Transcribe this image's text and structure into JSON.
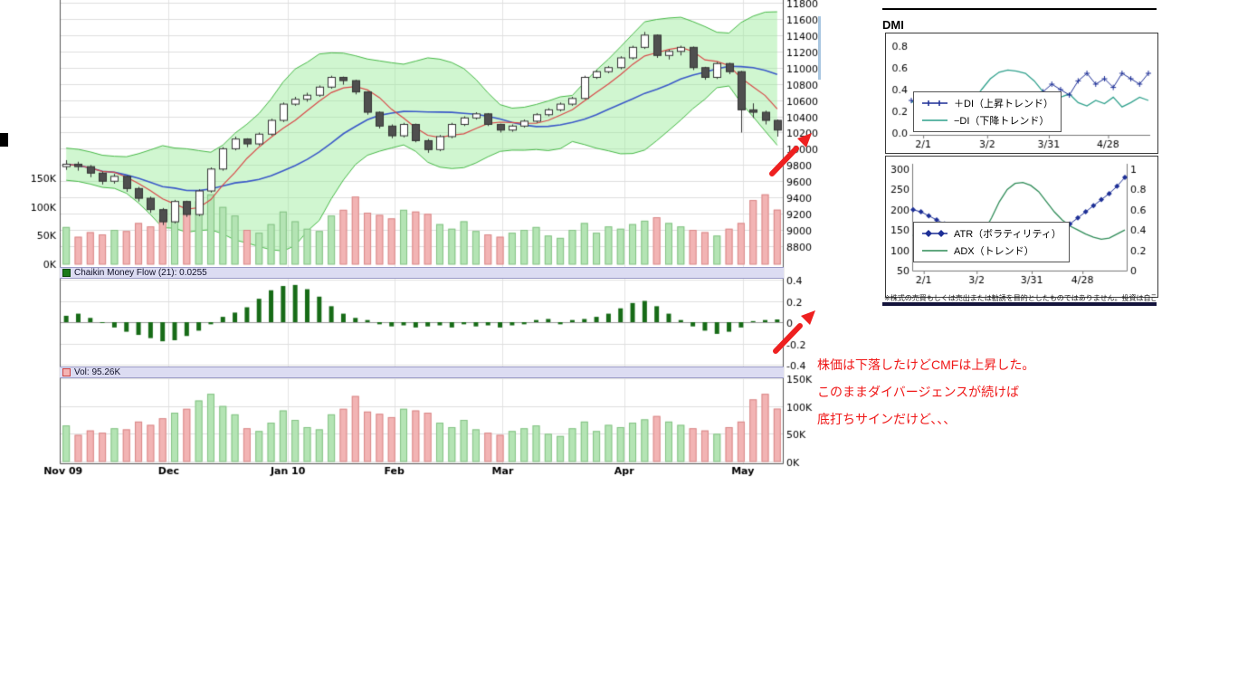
{
  "panels": {
    "cmf_header": "Chaikin Money Flow (21): 0.0255",
    "vol_header": "Vol: 95.26K"
  },
  "dmi": {
    "title": "DMI",
    "caption": "※株式の売買もしくは売出または勧誘を目的としたものではありません。投資は自己判断で。"
  },
  "annotation": {
    "lines": [
      "株価は下落したけどCMFは上昇した。",
      "このままダイバージェンスが続けば",
      "底打ちサインだけど、、、"
    ]
  },
  "colors": {
    "accent_red": "#ee2020",
    "band_fill": "rgba(150,235,150,0.45)",
    "band_edge": "#46b846",
    "bar_green": "#b4e4b4",
    "bar_green_edge": "#84c284",
    "bar_pink": "#f2b4b4",
    "bar_pink_edge": "#d98888",
    "cmf_green": "#176b17",
    "ma_red": "#d84848",
    "ma_blue": "#3a58c8",
    "di_plus_blue": "#1d2f96",
    "di_minus_teal": "#2fa08c",
    "atr_navy": "#1d2f96",
    "adx_green": "#2e8b57",
    "grid": "#dedede",
    "vgrid": "#e3e3e3",
    "candle_up_fill": "#ffffff",
    "candle_down_fill": "#4f4f4f",
    "candle_edge": "#333333",
    "header_bg": "#dcdcf2"
  },
  "chart_data": [
    {
      "type": "candlestick",
      "name": "price",
      "ylim": [
        8800,
        11800
      ],
      "y_ticks": [
        11800,
        11600,
        11400,
        11200,
        11000,
        10800,
        10600,
        10400,
        10200,
        10000,
        9800,
        9600,
        9400,
        9200,
        9000,
        8800
      ],
      "x_labels": [
        {
          "label": "Nov 09",
          "f": 0.004
        },
        {
          "label": "Dec",
          "f": 0.15
        },
        {
          "label": "Jan 10",
          "f": 0.315
        },
        {
          "label": "Feb",
          "f": 0.462
        },
        {
          "label": "Mar",
          "f": 0.612
        },
        {
          "label": "Apr",
          "f": 0.78
        },
        {
          "label": "May",
          "f": 0.944
        }
      ],
      "overlays": {
        "bollinger": {
          "window": 12,
          "stdev_mult": 2.2
        },
        "ma_fast_window": 5,
        "ma_slow_window": 15
      },
      "volume_overlay": {
        "ticks": [
          {
            "label": "150K",
            "v": 150
          },
          {
            "label": "100K",
            "v": 100
          },
          {
            "label": "50K",
            "v": 50
          },
          {
            "label": "0K",
            "v": 0
          }
        ],
        "max": 150
      },
      "candles": [
        [
          9780,
          9860,
          9740,
          9810
        ],
        [
          9810,
          9840,
          9730,
          9780
        ],
        [
          9780,
          9800,
          9650,
          9700
        ],
        [
          9700,
          9720,
          9560,
          9600
        ],
        [
          9600,
          9690,
          9570,
          9660
        ],
        [
          9660,
          9670,
          9470,
          9510
        ],
        [
          9510,
          9530,
          9350,
          9390
        ],
        [
          9390,
          9410,
          9210,
          9250
        ],
        [
          9250,
          9270,
          9060,
          9100
        ],
        [
          9100,
          9370,
          9080,
          9350
        ],
        [
          9350,
          9360,
          9160,
          9190
        ],
        [
          9190,
          9500,
          9170,
          9480
        ],
        [
          9480,
          9770,
          9460,
          9750
        ],
        [
          9750,
          10020,
          9730,
          10000
        ],
        [
          10000,
          10150,
          9980,
          10120
        ],
        [
          10120,
          10130,
          10020,
          10060
        ],
        [
          10060,
          10200,
          10040,
          10180
        ],
        [
          10180,
          10370,
          10160,
          10350
        ],
        [
          10350,
          10570,
          10330,
          10550
        ],
        [
          10550,
          10640,
          10530,
          10610
        ],
        [
          10610,
          10690,
          10580,
          10660
        ],
        [
          10660,
          10780,
          10640,
          10760
        ],
        [
          10760,
          10900,
          10740,
          10880
        ],
        [
          10880,
          10890,
          10790,
          10840
        ],
        [
          10840,
          10850,
          10670,
          10700
        ],
        [
          10700,
          10710,
          10420,
          10450
        ],
        [
          10450,
          10460,
          10250,
          10280
        ],
        [
          10280,
          10300,
          10130,
          10160
        ],
        [
          10160,
          10320,
          10140,
          10300
        ],
        [
          10300,
          10310,
          10080,
          10100
        ],
        [
          10100,
          10120,
          9950,
          9990
        ],
        [
          9990,
          10170,
          9970,
          10150
        ],
        [
          10150,
          10320,
          10130,
          10300
        ],
        [
          10300,
          10400,
          10280,
          10380
        ],
        [
          10380,
          10450,
          10360,
          10430
        ],
        [
          10430,
          10440,
          10280,
          10300
        ],
        [
          10300,
          10310,
          10200,
          10230
        ],
        [
          10230,
          10300,
          10210,
          10280
        ],
        [
          10280,
          10360,
          10260,
          10340
        ],
        [
          10340,
          10440,
          10320,
          10420
        ],
        [
          10420,
          10500,
          10400,
          10480
        ],
        [
          10480,
          10570,
          10460,
          10550
        ],
        [
          10550,
          10640,
          10530,
          10620
        ],
        [
          10620,
          10900,
          10610,
          10880
        ],
        [
          10880,
          10970,
          10860,
          10950
        ],
        [
          10950,
          11020,
          10930,
          11000
        ],
        [
          11000,
          11140,
          10980,
          11120
        ],
        [
          11120,
          11270,
          11100,
          11250
        ],
        [
          11250,
          11440,
          11230,
          11400
        ],
        [
          11400,
          11410,
          11120,
          11150
        ],
        [
          11150,
          11220,
          11100,
          11200
        ],
        [
          11200,
          11270,
          11150,
          11250
        ],
        [
          11250,
          11260,
          10970,
          11000
        ],
        [
          11000,
          11010,
          10850,
          10880
        ],
        [
          10880,
          11070,
          10860,
          11050
        ],
        [
          11050,
          11060,
          10920,
          10950
        ],
        [
          10950,
          10960,
          10200,
          10480
        ],
        [
          10480,
          10560,
          10380,
          10450
        ],
        [
          10450,
          10470,
          10300,
          10350
        ],
        [
          10350,
          10360,
          10150,
          10230
        ]
      ]
    },
    {
      "type": "bar",
      "name": "chaikin_money_flow",
      "label": "Chaikin Money Flow (21)",
      "last_value": 0.0255,
      "ylim": [
        -0.45,
        0.45
      ],
      "y_ticks": [
        {
          "label": "0.4",
          "v": 0.4
        },
        {
          "label": "0.2",
          "v": 0.2
        },
        {
          "label": "0",
          "v": 0
        },
        {
          "label": "-0.2",
          "v": -0.2
        },
        {
          "label": "-0.4",
          "v": -0.4
        }
      ],
      "values": [
        0.06,
        0.08,
        0.04,
        0.0,
        -0.05,
        -0.09,
        -0.12,
        -0.15,
        -0.18,
        -0.17,
        -0.13,
        -0.08,
        -0.02,
        0.05,
        0.09,
        0.14,
        0.22,
        0.3,
        0.34,
        0.35,
        0.31,
        0.24,
        0.15,
        0.08,
        0.04,
        0.02,
        -0.02,
        -0.04,
        -0.03,
        -0.05,
        -0.04,
        -0.03,
        -0.05,
        -0.02,
        -0.04,
        -0.03,
        -0.05,
        -0.03,
        -0.02,
        0.02,
        0.03,
        -0.02,
        0.02,
        0.03,
        0.05,
        0.08,
        0.13,
        0.18,
        0.2,
        0.15,
        0.08,
        0.02,
        -0.04,
        -0.08,
        -0.11,
        -0.09,
        -0.05,
        0.01,
        0.02,
        0.0255
      ]
    },
    {
      "type": "bar",
      "name": "volume",
      "label": "Vol",
      "last_value_label": "95.26K",
      "ylim_k": [
        0,
        150
      ],
      "y_ticks": [
        {
          "label": "150K",
          "v": 150
        },
        {
          "label": "100K",
          "v": 100
        },
        {
          "label": "50K",
          "v": 50
        },
        {
          "label": "0K",
          "v": 0
        }
      ],
      "values_k": [
        65,
        48,
        56,
        52,
        60,
        58,
        72,
        66,
        78,
        88,
        95,
        110,
        122,
        100,
        85,
        60,
        55,
        70,
        92,
        75,
        62,
        58,
        85,
        95,
        118,
        90,
        86,
        80,
        95,
        92,
        88,
        70,
        62,
        75,
        58,
        52,
        48,
        55,
        60,
        65,
        50,
        46,
        60,
        72,
        55,
        66,
        62,
        70,
        76,
        82,
        72,
        66,
        60,
        56,
        50,
        62,
        72,
        112,
        122,
        95.26
      ]
    },
    {
      "type": "line",
      "name": "dmi",
      "ylim": [
        0,
        0.85
      ],
      "y_ticks": [
        {
          "label": "0.8",
          "v": 0.8
        },
        {
          "label": "0.6",
          "v": 0.6
        },
        {
          "label": "0.4",
          "v": 0.4
        },
        {
          "label": "0.2",
          "v": 0.2
        },
        {
          "label": "0.0",
          "v": 0.0
        }
      ],
      "x_ticks": [
        {
          "label": "2/1",
          "f": 0.05
        },
        {
          "label": "3/2",
          "f": 0.32
        },
        {
          "label": "3/31",
          "f": 0.58
        },
        {
          "label": "4/28",
          "f": 0.83
        }
      ],
      "series": [
        {
          "name": "＋DI（上昇トレンド）",
          "marker": "plus",
          "values": [
            0.3,
            0.27,
            0.32,
            0.28,
            0.33,
            0.3,
            0.27,
            0.3,
            0.26,
            0.24,
            0.28,
            0.25,
            0.27,
            0.24,
            0.3,
            0.38,
            0.45,
            0.4,
            0.35,
            0.48,
            0.55,
            0.45,
            0.5,
            0.42,
            0.55,
            0.5,
            0.45,
            0.55
          ]
        },
        {
          "name": "−DI（下降トレンド）",
          "marker": "none",
          "values": [
            0.28,
            0.32,
            0.27,
            0.31,
            0.26,
            0.29,
            0.32,
            0.28,
            0.4,
            0.5,
            0.56,
            0.58,
            0.57,
            0.55,
            0.48,
            0.38,
            0.3,
            0.33,
            0.36,
            0.28,
            0.25,
            0.3,
            0.27,
            0.33,
            0.24,
            0.28,
            0.33,
            0.3
          ]
        }
      ]
    },
    {
      "type": "line",
      "name": "atr_adx",
      "left_ylim": [
        50,
        300
      ],
      "right_ylim": [
        0,
        1
      ],
      "left_y_ticks": [
        {
          "label": "300",
          "v": 300
        },
        {
          "label": "250",
          "v": 250
        },
        {
          "label": "200",
          "v": 200
        },
        {
          "label": "150",
          "v": 150
        },
        {
          "label": "100",
          "v": 100
        },
        {
          "label": "50",
          "v": 50
        }
      ],
      "right_y_ticks": [
        {
          "label": "1",
          "v": 1
        },
        {
          "label": "0.8",
          "v": 0.8
        },
        {
          "label": "0.6",
          "v": 0.6
        },
        {
          "label": "0.4",
          "v": 0.4
        },
        {
          "label": "0.2",
          "v": 0.2
        },
        {
          "label": "0",
          "v": 0
        }
      ],
      "x_ticks": [
        {
          "label": "2/1",
          "f": 0.05
        },
        {
          "label": "3/2",
          "f": 0.3
        },
        {
          "label": "3/31",
          "f": 0.56
        },
        {
          "label": "4/28",
          "f": 0.8
        }
      ],
      "series": [
        {
          "name": "ATR（ボラティリティ）",
          "axis": "left",
          "marker": "diamond",
          "values": [
            200,
            195,
            185,
            175,
            165,
            155,
            145,
            138,
            132,
            128,
            125,
            128,
            132,
            128,
            124,
            120,
            124,
            130,
            140,
            152,
            165,
            180,
            195,
            210,
            225,
            240,
            258,
            280
          ]
        },
        {
          "name": "ADX（トレンド）",
          "axis": "right",
          "marker": "none",
          "values": [
            0.35,
            0.32,
            0.28,
            0.25,
            0.22,
            0.2,
            0.22,
            0.24,
            0.28,
            0.38,
            0.52,
            0.68,
            0.8,
            0.86,
            0.87,
            0.84,
            0.78,
            0.68,
            0.58,
            0.5,
            0.44,
            0.4,
            0.36,
            0.33,
            0.31,
            0.32,
            0.36,
            0.4
          ]
        }
      ]
    }
  ]
}
